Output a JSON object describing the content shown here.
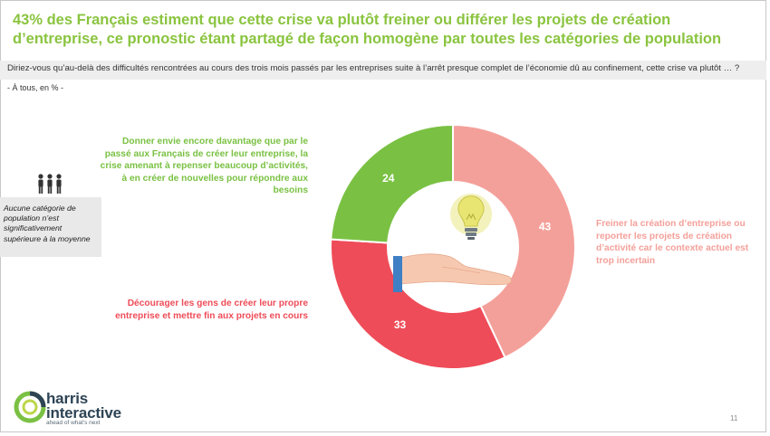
{
  "title": "43% des Français estiment que cette crise va plutôt freiner ou différer les projets de création d’entreprise, ce pronostic étant partagé de façon homogène par toutes les catégories de population",
  "question": "Diriez-vous qu’au-delà des difficultés rencontrées au cours des trois mois passés par les entreprises suite à l’arrêt presque complet de l’économie dû au confinement, cette crise va plutôt … ?",
  "base": "- À tous, en % -",
  "note": "Aucune catégorie de population n’est significativement supérieure à la moyenne",
  "brand": {
    "line1": "harris",
    "line2": "interactive",
    "tagline": "ahead of what's next"
  },
  "page_number": "11",
  "colors": {
    "title": "#8ac43f",
    "green": "#7ac143",
    "pink": "#f4a09a",
    "red": "#ee4c58"
  },
  "chart_data": {
    "type": "pie",
    "variant": "donut",
    "unit": "%",
    "slices": [
      {
        "label": "Freiner la création d’entreprise ou reporter les projets de création d’activité car le contexte actuel est trop incertain",
        "value": 43,
        "value_label": "43",
        "color": "#f4a09a"
      },
      {
        "label": "Décourager les gens de créer leur propre entreprise et mettre fin aux projets en cours",
        "value": 33,
        "value_label": "33",
        "color": "#ee4c58"
      },
      {
        "label": "Donner envie encore davantage que par le passé aux Français de créer leur entreprise, la crise amenant à repenser beaucoup d’activités, à en créer de nouvelles pour répondre aux besoins",
        "value": 24,
        "value_label": "24",
        "color": "#7ac143"
      }
    ]
  }
}
